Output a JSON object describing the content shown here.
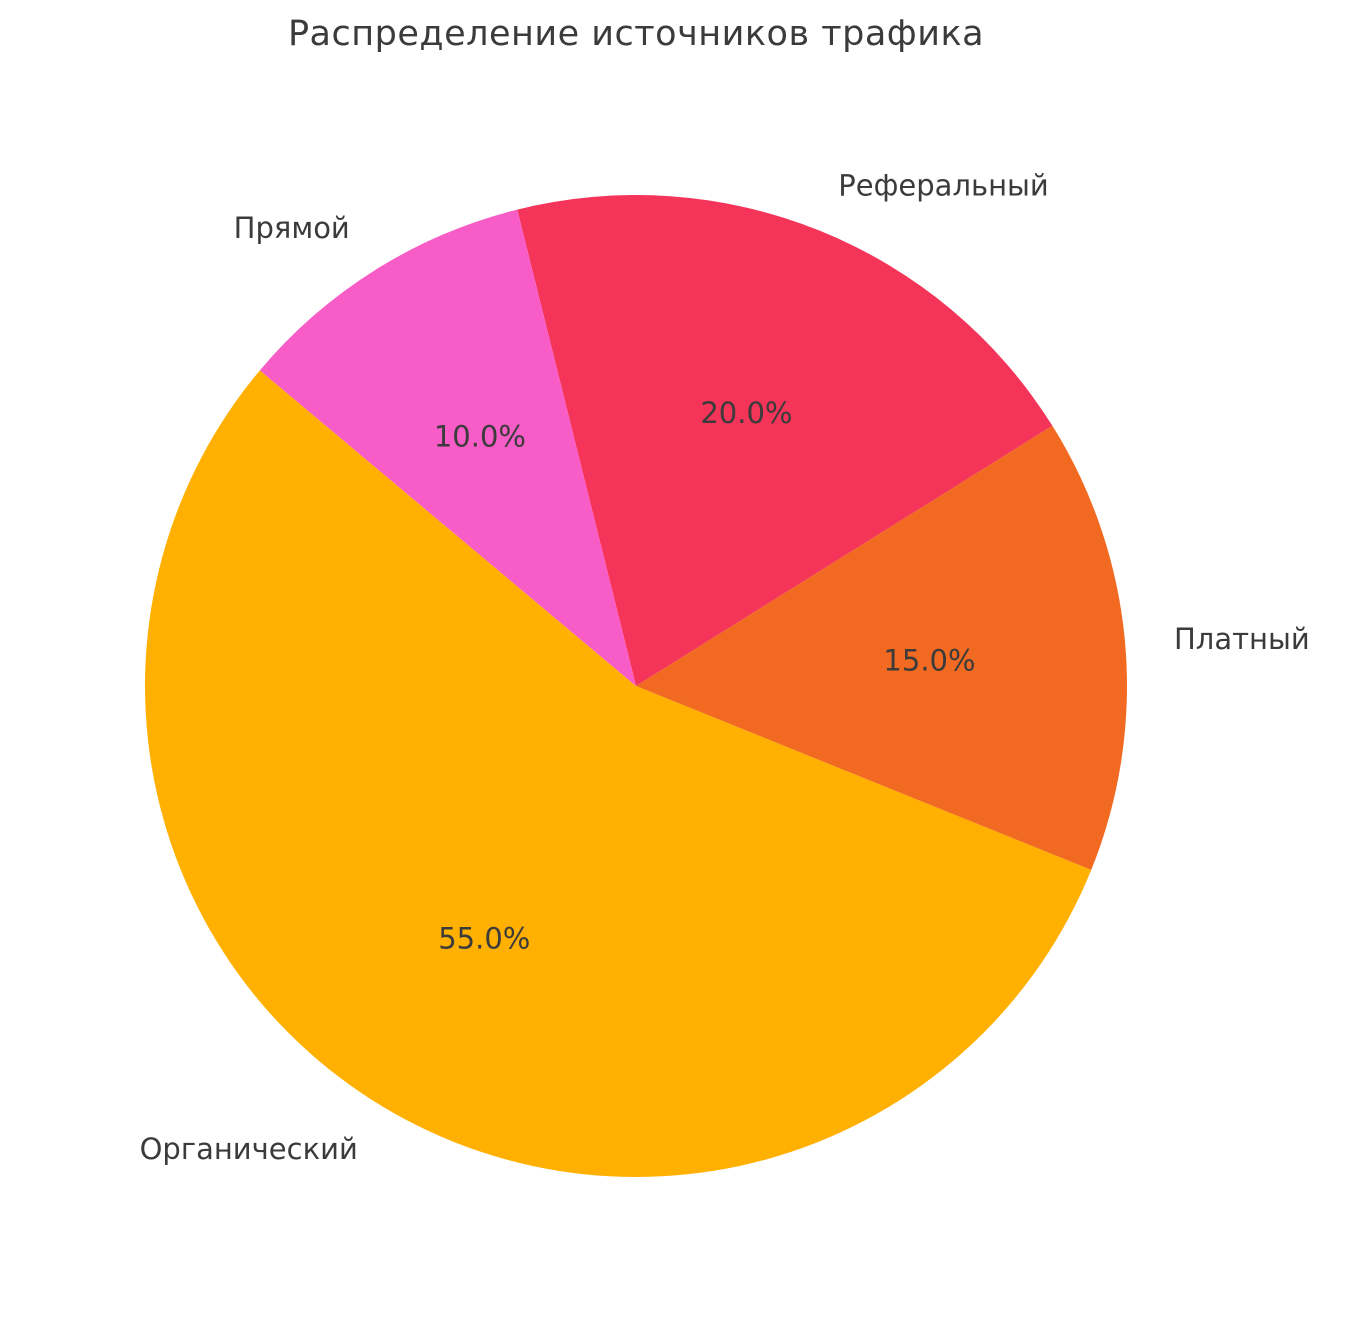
{
  "chart_data": {
    "type": "pie",
    "title": "Распределение источников трафика",
    "slices": [
      {
        "label": "Органический",
        "value": 55.0,
        "pct_label": "55.0%",
        "color": "#FFB001"
      },
      {
        "label": "Платный",
        "value": 15.0,
        "pct_label": "15.0%",
        "color": "#F26A21"
      },
      {
        "label": "Реферальный",
        "value": 20.0,
        "pct_label": "20.0%",
        "color": "#F43459"
      },
      {
        "label": "Прямой",
        "value": 10.0,
        "pct_label": "10.0%",
        "color": "#F75CC7"
      }
    ],
    "start_angle_deg": 140,
    "direction": "counterclockwise",
    "label_radius_fraction": 1.1,
    "pct_radius_fraction": 0.6,
    "text_color": "#3b3b3b",
    "background": "#ffffff",
    "legend": "none"
  }
}
